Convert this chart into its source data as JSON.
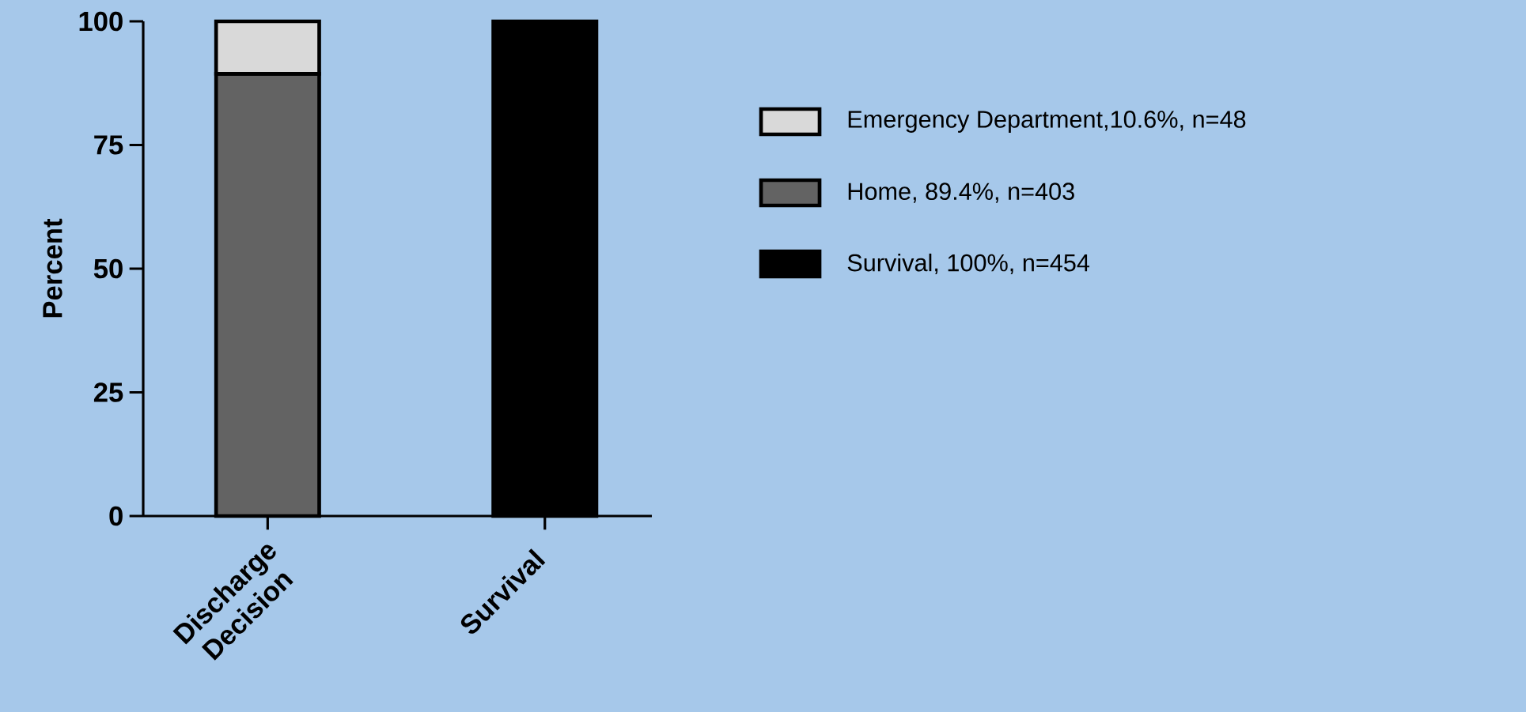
{
  "chart_data": {
    "type": "bar",
    "stacked": true,
    "ylabel": "Percent",
    "categories": [
      "Discharge Decision",
      "Survival"
    ],
    "series": [
      {
        "name": "Home, 89.4%, n=403",
        "color": "#636363",
        "values": [
          89.4,
          null
        ]
      },
      {
        "name": "Emergency Department,10.6%, n=48",
        "color": "#d9d9d9",
        "values": [
          10.6,
          null
        ]
      },
      {
        "name": "Survival, 100%, n=454",
        "color": "#000000",
        "values": [
          null,
          100
        ]
      }
    ],
    "ylim": [
      0,
      100
    ],
    "yticks": [
      0,
      25,
      50,
      75,
      100
    ],
    "grid": false,
    "legend": "right"
  }
}
